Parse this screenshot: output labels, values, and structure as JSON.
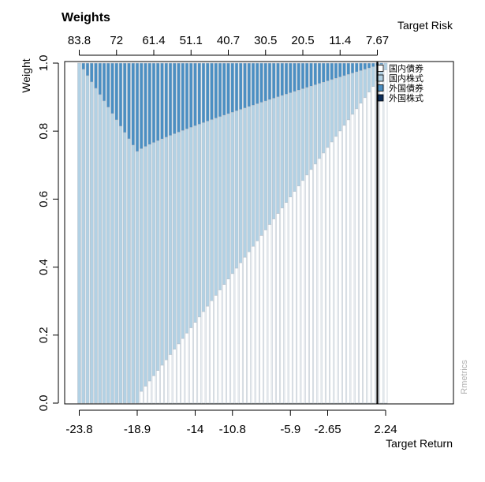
{
  "chart_data": {
    "type": "bar",
    "stacked": true,
    "title": "Weights",
    "ylabel": "Weight",
    "xlabel": "Target Return",
    "top_axis_label": "Target Risk",
    "credit": "Rmetrics",
    "ylim": [
      0,
      1
    ],
    "y_ticks": [
      "0.0",
      "0.2",
      "0.4",
      "0.6",
      "0.8",
      "1.0"
    ],
    "bottom_ticks": [
      {
        "label": "-23.8",
        "bar": 1
      },
      {
        "label": "-18.9",
        "bar": 15
      },
      {
        "label": "-14",
        "bar": 29
      },
      {
        "label": "-10.8",
        "bar": 38
      },
      {
        "label": "-5.9",
        "bar": 52
      },
      {
        "label": "-2.65",
        "bar": 61
      },
      {
        "label": "2.24",
        "bar": 75
      }
    ],
    "top_ticks": [
      {
        "label": "83.8",
        "bar": 1
      },
      {
        "label": "72",
        "bar": 10
      },
      {
        "label": "61.4",
        "bar": 19
      },
      {
        "label": "51.1",
        "bar": 28
      },
      {
        "label": "40.7",
        "bar": 37
      },
      {
        "label": "30.5",
        "bar": 46
      },
      {
        "label": "20.5",
        "bar": 55
      },
      {
        "label": "11.4",
        "bar": 64
      },
      {
        "label": "7.67",
        "bar": 73
      }
    ],
    "n_bars": 75,
    "marker_bar": 73,
    "series": [
      {
        "name": "国内債券",
        "color": "#ffffff"
      },
      {
        "name": "国内株式",
        "color": "#b2d1e4"
      },
      {
        "name": "外国債券",
        "color": "#4b8fc3"
      },
      {
        "name": "外国株式",
        "color": "#0c2d5a"
      }
    ],
    "legend_position": "right",
    "grid": false
  }
}
